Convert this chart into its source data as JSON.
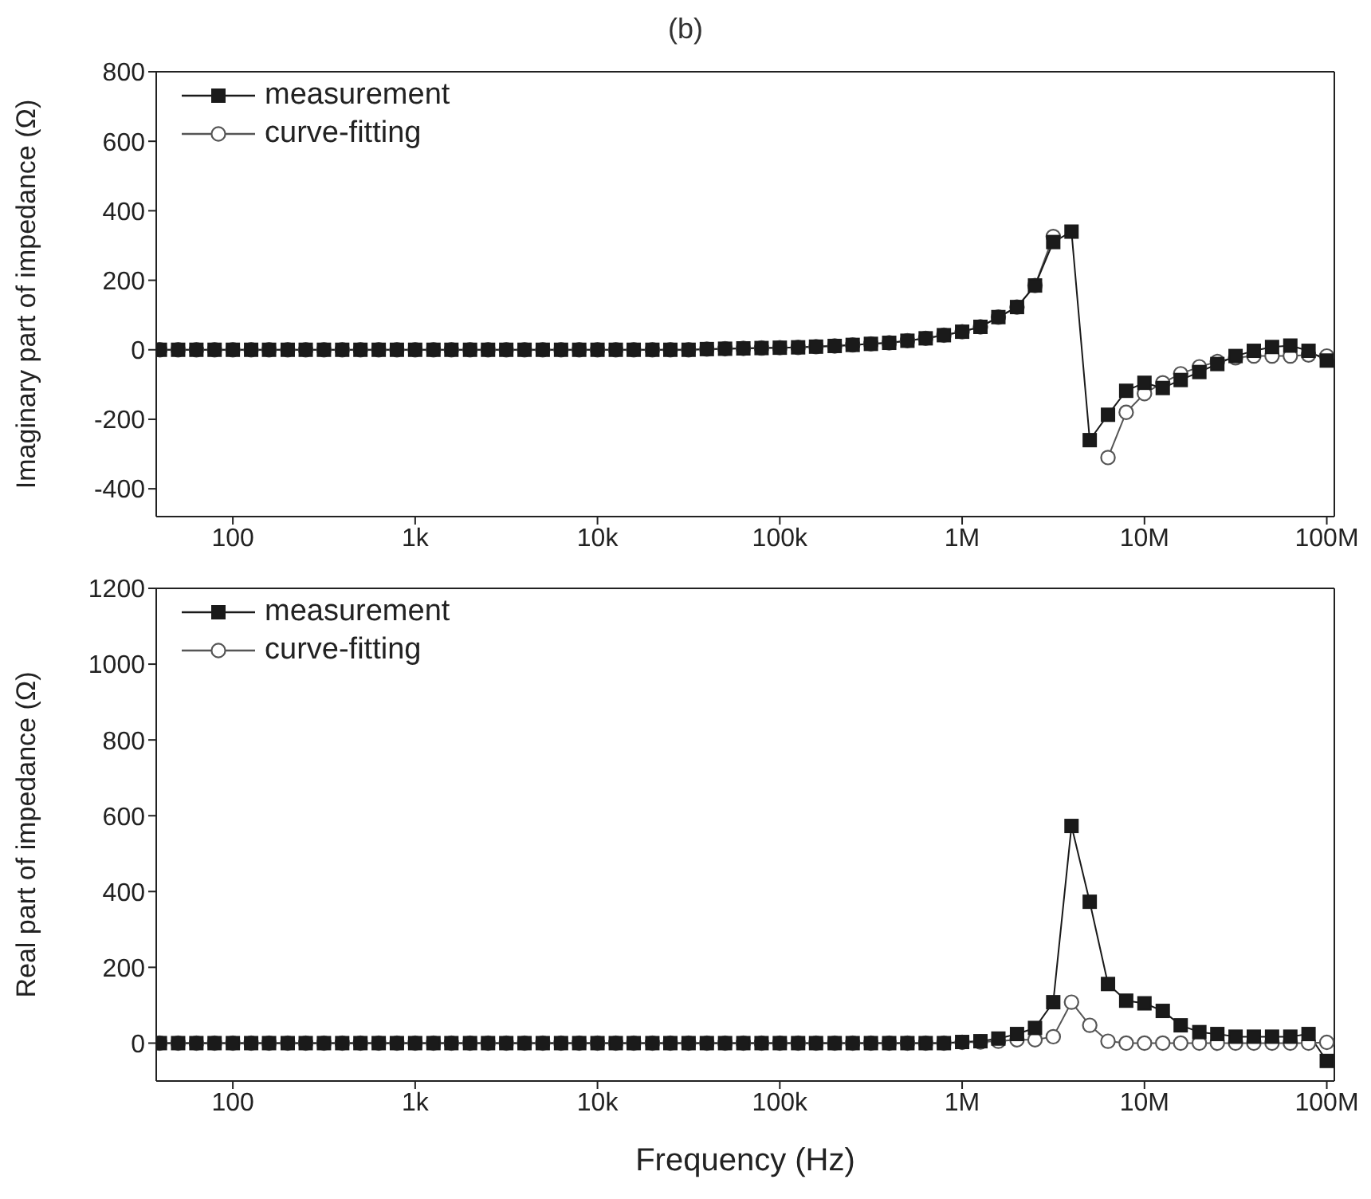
{
  "chart_data": [
    {
      "type": "line",
      "title": "(b)",
      "ylabel": "Imaginary part of impedance (Ω)",
      "log": "x",
      "legend": "top left",
      "grid": false,
      "x": [
        39.8,
        50.1,
        63.1,
        79.4,
        100,
        126,
        158,
        200,
        251,
        316,
        398,
        501,
        631,
        794,
        1000,
        1260,
        1580,
        2000,
        2510,
        3160,
        3980,
        5010,
        6310,
        7940,
        10000,
        12600,
        15800,
        20000,
        25100,
        31600,
        39800,
        50100,
        63100,
        79400,
        100000,
        126000,
        158000,
        200000,
        251000,
        316000,
        398000,
        501000,
        631000,
        794000,
        1000000,
        1260000,
        1580000,
        2000000,
        2510000,
        3160000,
        3980000,
        5010000,
        6310000,
        7940000,
        10000000,
        12600000,
        15800000,
        20000000,
        25100000,
        31600000,
        39800000,
        50100000,
        63100000,
        79400000,
        100000000
      ],
      "xlim": [
        38,
        110000000
      ],
      "xticks": [
        {
          "value": 100,
          "label": "100"
        },
        {
          "value": 1000,
          "label": "1k"
        },
        {
          "value": 10000,
          "label": "10k"
        },
        {
          "value": 100000,
          "label": "100k"
        },
        {
          "value": 1000000,
          "label": "1M"
        },
        {
          "value": 10000000,
          "label": "10M"
        },
        {
          "value": 100000000,
          "label": "100M"
        }
      ],
      "ylim": [
        -480,
        800
      ],
      "yticks": [
        -400,
        -200,
        0,
        200,
        400,
        600,
        800
      ],
      "series": [
        {
          "name": "measurement",
          "color": "#1a1a1a",
          "marker": "square",
          "values": [
            0,
            0,
            0,
            0,
            0,
            0,
            0,
            0,
            0,
            0,
            0,
            0,
            0,
            0,
            0,
            0,
            0,
            0,
            0,
            0,
            0,
            0,
            0,
            0,
            0,
            0,
            0,
            0,
            0,
            0,
            2,
            3,
            4,
            5,
            6,
            7,
            9,
            11,
            14,
            17,
            20,
            26,
            33,
            42,
            52,
            66,
            94,
            123,
            185,
            310,
            340,
            -260,
            -187,
            -118,
            -95,
            -110,
            -87,
            -64,
            -41,
            -18,
            -3,
            8,
            12,
            -3,
            -31
          ]
        },
        {
          "name": "curve-fitting",
          "color": "#555555",
          "marker": "circle",
          "values": [
            0,
            0,
            0,
            0,
            0,
            0,
            0,
            0,
            0,
            0,
            0,
            0,
            0,
            0,
            0,
            0,
            0,
            0,
            0,
            0,
            0,
            0,
            0,
            0,
            0,
            0,
            0,
            0,
            0,
            0,
            2,
            3,
            4,
            5,
            6,
            7,
            9,
            11,
            14,
            17,
            20,
            26,
            33,
            42,
            52,
            66,
            94,
            123,
            185,
            326,
            null,
            null,
            -310,
            -180,
            -126,
            -95,
            -69,
            -49,
            -34,
            -23,
            -18,
            -18,
            -18,
            -15,
            -18
          ]
        }
      ]
    },
    {
      "type": "line",
      "xlabel": "Frequency (Hz)",
      "ylabel": "Real part of impedance (Ω)",
      "log": "x",
      "legend": "top left",
      "grid": false,
      "x": [
        39.8,
        50.1,
        63.1,
        79.4,
        100,
        126,
        158,
        200,
        251,
        316,
        398,
        501,
        631,
        794,
        1000,
        1260,
        1580,
        2000,
        2510,
        3160,
        3980,
        5010,
        6310,
        7940,
        10000,
        12600,
        15800,
        20000,
        25100,
        31600,
        39800,
        50100,
        63100,
        79400,
        100000,
        126000,
        158000,
        200000,
        251000,
        316000,
        398000,
        501000,
        631000,
        794000,
        1000000,
        1260000,
        1580000,
        2000000,
        2510000,
        3160000,
        3980000,
        5010000,
        6310000,
        7940000,
        10000000,
        12600000,
        15800000,
        20000000,
        25100000,
        31600000,
        39800000,
        50100000,
        63100000,
        79400000,
        100000000
      ],
      "xlim": [
        38,
        110000000
      ],
      "xticks": [
        {
          "value": 100,
          "label": "100"
        },
        {
          "value": 1000,
          "label": "1k"
        },
        {
          "value": 10000,
          "label": "10k"
        },
        {
          "value": 100000,
          "label": "100k"
        },
        {
          "value": 1000000,
          "label": "1M"
        },
        {
          "value": 10000000,
          "label": "10M"
        },
        {
          "value": 100000000,
          "label": "100M"
        }
      ],
      "ylim": [
        -100,
        1200
      ],
      "yticks": [
        0,
        200,
        400,
        600,
        800,
        1000,
        1200
      ],
      "series": [
        {
          "name": "measurement",
          "color": "#1a1a1a",
          "marker": "square",
          "values": [
            0,
            0,
            0,
            0,
            0,
            0,
            0,
            0,
            0,
            0,
            0,
            0,
            0,
            0,
            0,
            0,
            0,
            0,
            0,
            0,
            0,
            0,
            0,
            0,
            0,
            0,
            0,
            0,
            0,
            0,
            0,
            0,
            0,
            0,
            0,
            0,
            0,
            0,
            0,
            0,
            0,
            0,
            0,
            0,
            3,
            5,
            12,
            24,
            40,
            108,
            573,
            373,
            156,
            112,
            105,
            85,
            47,
            29,
            24,
            17,
            17,
            17,
            17,
            24,
            -47
          ]
        },
        {
          "name": "curve-fitting",
          "color": "#555555",
          "marker": "circle",
          "values": [
            0,
            0,
            0,
            0,
            0,
            0,
            0,
            0,
            0,
            0,
            0,
            0,
            0,
            0,
            0,
            0,
            0,
            0,
            0,
            0,
            0,
            0,
            0,
            0,
            0,
            0,
            0,
            0,
            0,
            0,
            0,
            0,
            0,
            0,
            0,
            0,
            0,
            0,
            0,
            0,
            0,
            0,
            0,
            0,
            2,
            3,
            5,
            9,
            9,
            17,
            108,
            47,
            5,
            0,
            0,
            0,
            0,
            0,
            0,
            0,
            0,
            0,
            0,
            0,
            2
          ]
        }
      ]
    }
  ]
}
